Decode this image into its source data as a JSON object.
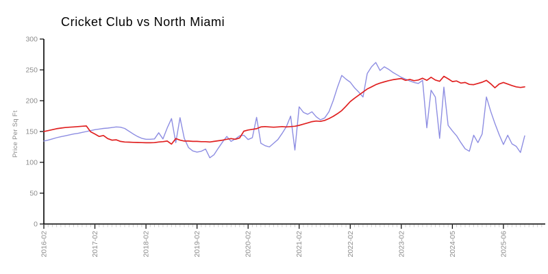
{
  "chart_data": {
    "type": "line",
    "title": "Cricket Club vs North Miami",
    "ylabel": "Price Per Sq Ft",
    "xlabel": "",
    "ylim": [
      0,
      300
    ],
    "y_ticks": [
      0,
      50,
      100,
      150,
      200,
      250,
      300
    ],
    "x_tick_labels": [
      "2016-02",
      "2017-02",
      "2018-02",
      "2019-02",
      "2020-02",
      "2021-02",
      "2022-02",
      "2023-02",
      "2024-05",
      "2025-06"
    ],
    "points_per_major_tick": 12,
    "grid": false,
    "legend_position": "none",
    "axis_color": "#000000",
    "tick_label_color": "#8c8c8c",
    "minor_tick_color": "#c8c8c8",
    "series": [
      {
        "name": "Cricket Club",
        "color": "#8d8de2",
        "values": [
          134.5,
          136,
          138,
          140,
          141.5,
          143,
          144.5,
          146,
          147,
          148.5,
          150,
          151.5,
          153,
          154,
          155,
          155.5,
          156.5,
          157.5,
          157,
          155,
          150.5,
          146,
          142,
          139,
          137.5,
          137.5,
          138,
          148,
          138,
          156,
          171,
          132,
          172.5,
          139,
          124,
          118.5,
          116.5,
          118,
          121.5,
          107.5,
          112.5,
          123,
          133,
          142,
          134,
          138,
          143,
          144,
          137,
          140,
          173,
          131,
          127,
          125,
          131,
          137,
          147,
          158,
          175,
          120,
          190,
          181,
          178,
          182,
          174,
          169,
          172,
          182,
          200,
          222,
          241,
          235,
          230,
          221,
          214,
          206,
          244,
          255,
          262,
          249,
          255,
          251,
          246,
          242,
          238,
          235,
          232,
          229.5,
          228,
          233,
          156,
          217,
          206,
          139,
          222,
          160,
          151,
          143,
          132,
          122,
          118,
          144,
          132,
          146,
          206,
          183,
          163,
          145,
          129,
          144,
          130,
          126,
          116,
          143
        ]
      },
      {
        "name": "North Miami",
        "color": "#e02020",
        "values": [
          150,
          151.5,
          153,
          154.5,
          155.5,
          156.5,
          157,
          157.5,
          158,
          158.5,
          159,
          149.5,
          146,
          142,
          143.5,
          138.5,
          136,
          136.5,
          134,
          133,
          132.8,
          132.5,
          132.2,
          132,
          131.8,
          131.8,
          132,
          133,
          133.5,
          134.5,
          129.5,
          138.5,
          136,
          134.5,
          134.5,
          134,
          134,
          133.5,
          133.5,
          133,
          134,
          135,
          136,
          137.5,
          138.5,
          137.5,
          139.5,
          150.5,
          152.5,
          153.5,
          154.5,
          157.5,
          158,
          157.5,
          157,
          157.5,
          158,
          157.5,
          158,
          158.5,
          160,
          162,
          164,
          166,
          167,
          166.5,
          168,
          171,
          174.5,
          179,
          184,
          191,
          198.5,
          204,
          209,
          214,
          219,
          222.5,
          226,
          228.5,
          230.5,
          232.5,
          234,
          235,
          236,
          233,
          234.5,
          232.5,
          233.5,
          236.5,
          233,
          238,
          233.5,
          231.5,
          239.5,
          235.5,
          231,
          232,
          228.5,
          229.5,
          226.5,
          226,
          228,
          230,
          233,
          227.5,
          221,
          227,
          229.5,
          227,
          224.5,
          222.5,
          221.5,
          222.5
        ]
      }
    ]
  }
}
